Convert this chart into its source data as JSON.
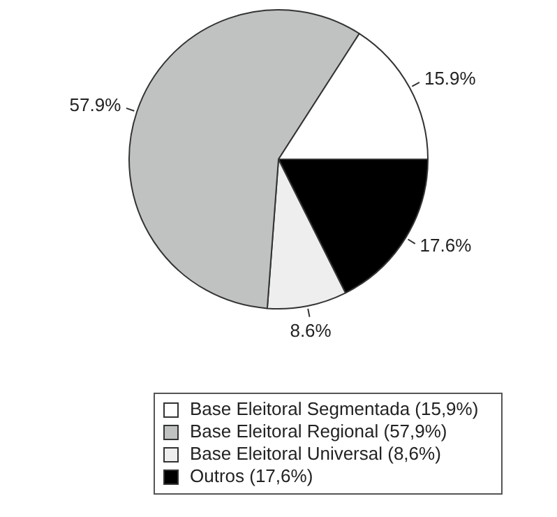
{
  "chart_data": {
    "type": "pie",
    "categories": [
      "Base Eleitoral Segmentada (15,9%)",
      "Base Eleitoral Regional (57,9%)",
      "Base Eleitoral Universal (8,6%)",
      "Outros (17,6%)"
    ],
    "values": [
      15.9,
      57.9,
      8.6,
      17.6
    ],
    "colors": [
      "#ffffff",
      "#c0c2c2",
      "#eeeeee",
      "#000000"
    ],
    "value_labels": [
      "15.9%",
      "57.9%",
      "8.6%",
      "17.6%"
    ],
    "legend": "bottom"
  }
}
